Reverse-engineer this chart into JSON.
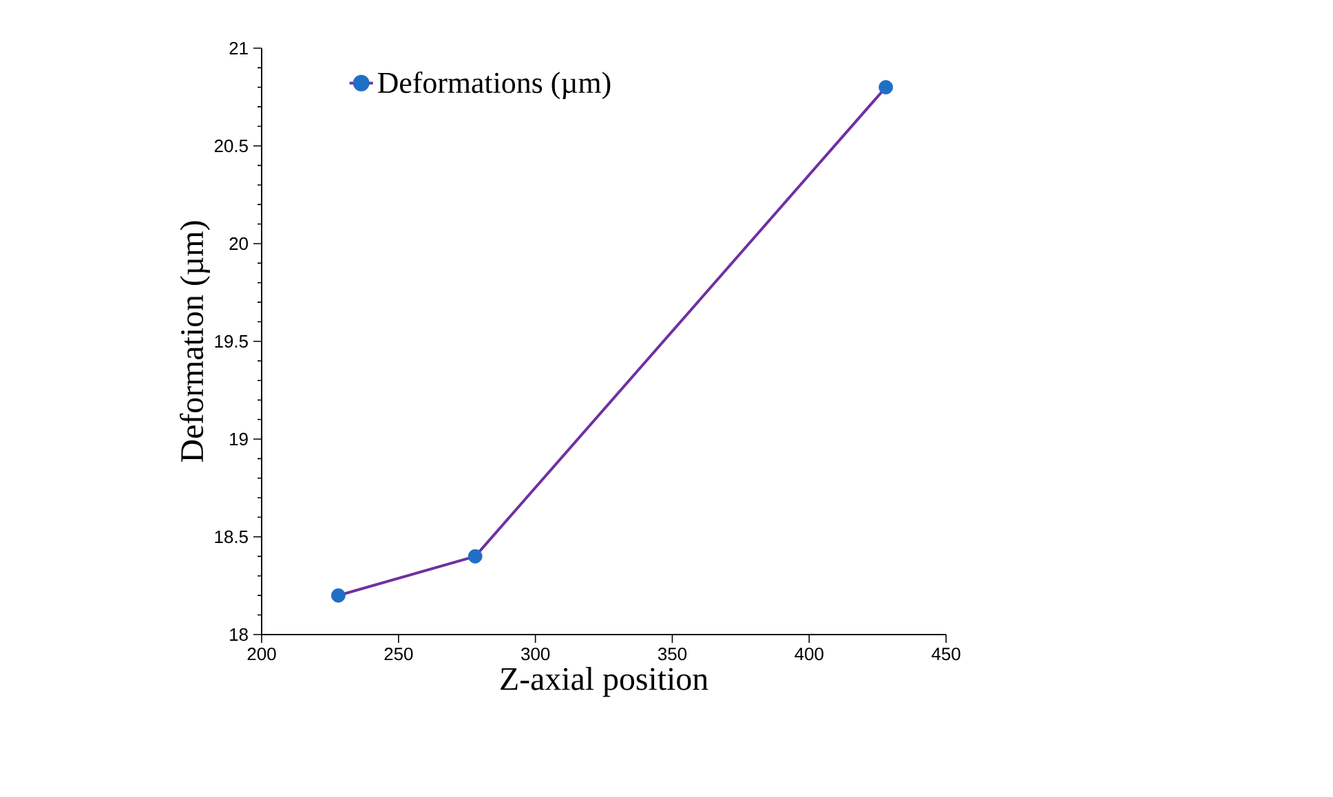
{
  "chart_data": {
    "type": "line",
    "xlabel": "Z-axial position",
    "ylabel": "Deformation (µm)",
    "x": [
      228,
      278,
      428
    ],
    "series": [
      {
        "name": "Deformations (µm)",
        "color": "#7030a0",
        "colors": [
          "#1f6fc4",
          "#1f6fc4",
          "#1f6fc4"
        ],
        "values": [
          18.2,
          18.4,
          20.8
        ]
      }
    ],
    "xlim": [
      200,
      450
    ],
    "xticks": [
      200,
      250,
      300,
      350,
      400,
      450
    ],
    "ylim": [
      18,
      21
    ],
    "yticks": [
      18,
      18.5,
      19,
      19.5,
      20,
      20.5,
      21
    ],
    "marker": "circle",
    "line_style": "solid",
    "legend": "top left"
  }
}
